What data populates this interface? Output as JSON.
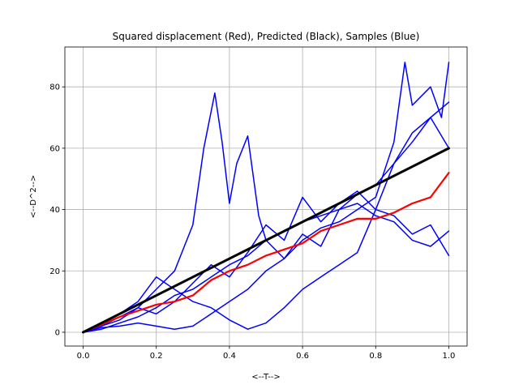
{
  "chart_data": {
    "type": "line",
    "title": "Squared displacement (Red), Predicted (Black), Samples (Blue)",
    "xlabel": "<--T-->",
    "ylabel": "<--D^2-->",
    "xlim": [
      -0.05,
      1.05
    ],
    "ylim": [
      -4.5,
      93
    ],
    "xticks": [
      0.0,
      0.2,
      0.4,
      0.6,
      0.8,
      1.0
    ],
    "xtick_labels": [
      "0.0",
      "0.2",
      "0.4",
      "0.6",
      "0.8",
      "1.0"
    ],
    "yticks": [
      0,
      20,
      40,
      60,
      80
    ],
    "ytick_labels": [
      "0",
      "20",
      "40",
      "60",
      "80"
    ],
    "grid": true,
    "legend": "none",
    "colors": {
      "samples": "#0000ff",
      "mean": "#ff0000",
      "predicted": "#000000",
      "grid": "#b0b0b0"
    },
    "series": [
      {
        "role": "sample",
        "color": "#0000ff",
        "x": [
          0,
          0.05,
          0.1,
          0.15,
          0.2,
          0.25,
          0.3,
          0.33,
          0.36,
          0.38,
          0.4,
          0.42,
          0.45,
          0.48,
          0.5,
          0.55,
          0.6,
          0.65,
          0.7,
          0.75,
          0.8,
          0.85,
          0.9,
          0.95,
          1.0
        ],
        "y": [
          0,
          2,
          4,
          8,
          14,
          20,
          35,
          60,
          78,
          62,
          42,
          55,
          64,
          38,
          30,
          24,
          32,
          28,
          40,
          45,
          48,
          55,
          62,
          70,
          75
        ]
      },
      {
        "role": "sample",
        "color": "#0000ff",
        "x": [
          0,
          0.05,
          0.1,
          0.15,
          0.2,
          0.25,
          0.3,
          0.35,
          0.4,
          0.45,
          0.5,
          0.55,
          0.6,
          0.65,
          0.7,
          0.75,
          0.8,
          0.85,
          0.88,
          0.9,
          0.95,
          0.98,
          1.0
        ],
        "y": [
          0,
          1.5,
          2,
          3,
          2,
          1,
          2,
          6,
          10,
          14,
          20,
          24,
          30,
          34,
          36,
          40,
          44,
          62,
          88,
          74,
          80,
          70,
          88
        ]
      },
      {
        "role": "sample",
        "color": "#0000ff",
        "x": [
          0,
          0.05,
          0.1,
          0.15,
          0.2,
          0.25,
          0.3,
          0.35,
          0.4,
          0.45,
          0.5,
          0.55,
          0.6,
          0.65,
          0.7,
          0.75,
          0.8,
          0.85,
          0.9,
          0.95,
          1.0
        ],
        "y": [
          0,
          3,
          6,
          10,
          18,
          14,
          10,
          8,
          4,
          1,
          3,
          8,
          14,
          18,
          22,
          26,
          40,
          55,
          65,
          70,
          60
        ]
      },
      {
        "role": "sample",
        "color": "#0000ff",
        "x": [
          0,
          0.05,
          0.1,
          0.15,
          0.2,
          0.25,
          0.3,
          0.35,
          0.4,
          0.45,
          0.5,
          0.55,
          0.6,
          0.65,
          0.7,
          0.75,
          0.8,
          0.85,
          0.9,
          0.95,
          1.0
        ],
        "y": [
          0,
          2,
          5,
          8,
          6,
          10,
          16,
          22,
          18,
          26,
          35,
          30,
          44,
          36,
          42,
          46,
          40,
          38,
          32,
          35,
          25
        ]
      },
      {
        "role": "sample",
        "color": "#0000ff",
        "x": [
          0,
          0.05,
          0.1,
          0.15,
          0.2,
          0.25,
          0.3,
          0.35,
          0.4,
          0.45,
          0.5,
          0.55,
          0.6,
          0.65,
          0.7,
          0.75,
          0.8,
          0.85,
          0.9,
          0.95,
          1.0
        ],
        "y": [
          0,
          1,
          3,
          5,
          8,
          12,
          14,
          18,
          22,
          25,
          30,
          33,
          36,
          38,
          40,
          42,
          38,
          36,
          30,
          28,
          33
        ]
      },
      {
        "role": "mean",
        "color": "#ff0000",
        "x": [
          0,
          0.05,
          0.1,
          0.15,
          0.2,
          0.25,
          0.3,
          0.35,
          0.4,
          0.45,
          0.5,
          0.55,
          0.6,
          0.65,
          0.7,
          0.75,
          0.8,
          0.85,
          0.9,
          0.95,
          1.0
        ],
        "y": [
          0,
          2.5,
          5,
          7,
          9,
          10,
          12,
          17,
          20,
          22,
          25,
          27,
          29,
          33,
          35,
          37,
          37,
          39,
          42,
          44,
          52
        ]
      },
      {
        "role": "predicted",
        "color": "#000000",
        "x": [
          0,
          1.0
        ],
        "y": [
          0,
          60
        ]
      }
    ]
  }
}
